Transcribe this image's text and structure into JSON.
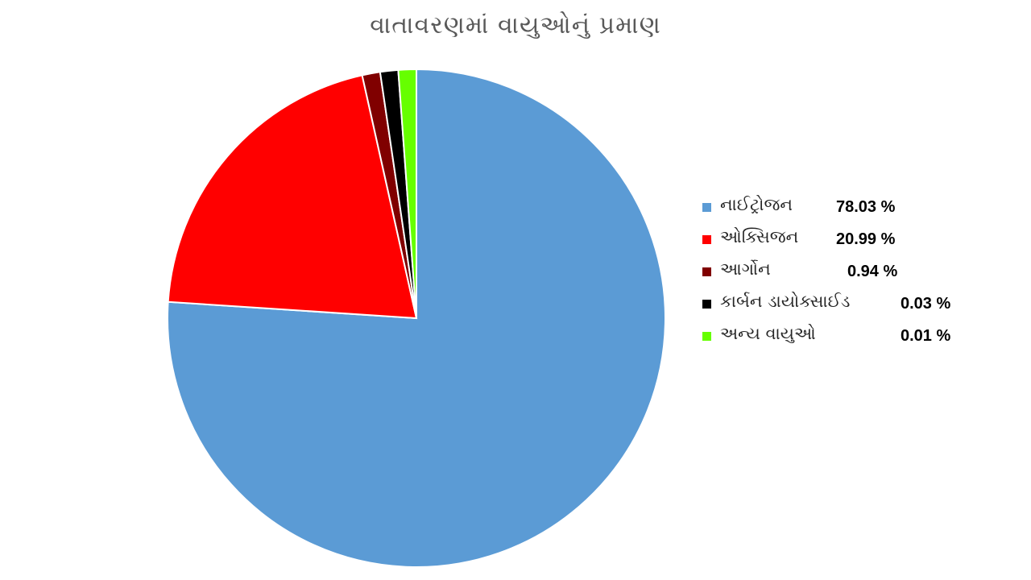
{
  "chart_data": {
    "type": "pie",
    "title": "વાતાવરણમાં વાયુઓનું પ્રમાણ",
    "legend_position": "right",
    "series": [
      {
        "name": "નાઈટ્રોજન",
        "value": 78.03,
        "label": "78.03 %",
        "color": "#5B9BD5"
      },
      {
        "name": "ઓક્સિજન",
        "value": 20.99,
        "label": "20.99 %",
        "color": "#FF0000"
      },
      {
        "name": "આર્ગોન",
        "value": 0.94,
        "label": "0.94 %",
        "color": "#800000"
      },
      {
        "name": "કાર્બન ડાયોક્સાઈડ",
        "value": 0.03,
        "label": "0.03 %",
        "color": "#000000"
      },
      {
        "name": "અન્ય વાયુઓ",
        "value": 0.01,
        "label": "0.01 %",
        "color": "#66FF00"
      }
    ]
  }
}
